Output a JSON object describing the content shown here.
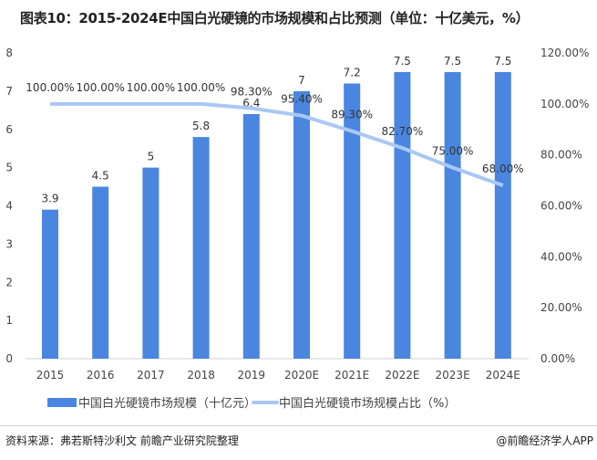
{
  "title": "图表10：2015-2024E中国白光硬镜的市场规模和占比预测（单位：十亿美元，%）",
  "source": "资料来源：弗若斯特沙利文 前瞻产业研究院整理",
  "credit": "@前瞻经济学人APP",
  "chart_data": {
    "type": "bar+line",
    "categories": [
      "2015",
      "2016",
      "2017",
      "2018",
      "2019",
      "2020E",
      "2021E",
      "2022E",
      "2023E",
      "2024E"
    ],
    "series": [
      {
        "name": "中国白光硬镜市场规模（十亿元）",
        "type": "bar",
        "axis": "left",
        "color": "#4a86e0",
        "values": [
          3.9,
          4.5,
          5,
          5.8,
          6.4,
          7,
          7.2,
          7.5,
          7.5,
          7.5
        ],
        "labels": [
          "3.9",
          "4.5",
          "5",
          "5.8",
          "6.4",
          "7",
          "7.2",
          "7.5",
          "7.5",
          "7.5"
        ]
      },
      {
        "name": "中国白光硬镜市场规模占比（%）",
        "type": "line",
        "axis": "right",
        "color": "#a9c8f3",
        "values": [
          100,
          100,
          100,
          100,
          98.3,
          95.4,
          89.3,
          82.7,
          75,
          68
        ],
        "labels": [
          "100.00%",
          "100.00%",
          "100.00%",
          "100.00%",
          "98.30%",
          "95.40%",
          "89.30%",
          "82.70%",
          "75.00%",
          "68.00%"
        ]
      }
    ],
    "y_left": {
      "range": [
        0,
        8
      ],
      "ticks": [
        "0",
        "1",
        "2",
        "3",
        "4",
        "5",
        "6",
        "7",
        "8"
      ]
    },
    "y_right": {
      "range": [
        0,
        120
      ],
      "ticks": [
        "0.00%",
        "20.00%",
        "40.00%",
        "60.00%",
        "80.00%",
        "100.00%",
        "120.00%"
      ]
    },
    "grid": false,
    "legend": "bottom"
  }
}
